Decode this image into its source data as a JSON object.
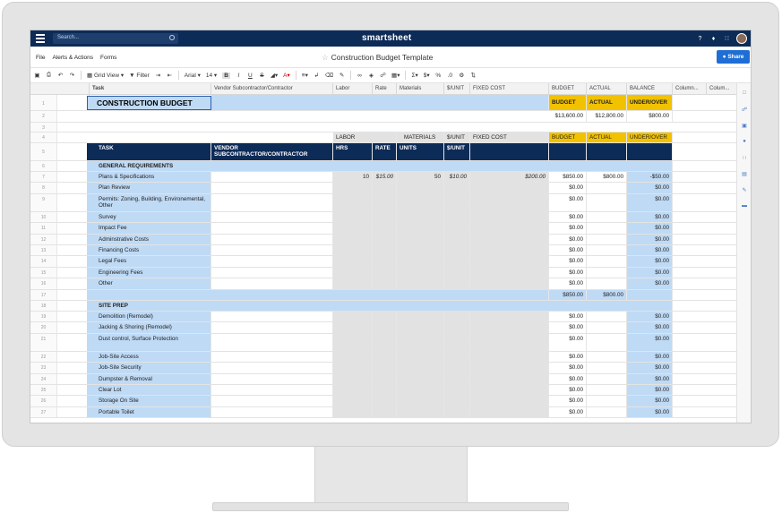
{
  "app": {
    "brand": "smartsheet",
    "search_placeholder": "Search...",
    "doc_title": "Construction Budget Template",
    "share_label": "Share",
    "menu": [
      "File",
      "Alerts & Actions",
      "Forms"
    ]
  },
  "toolbar": {
    "grid_view": "Grid View",
    "filter": "Filter",
    "font": "Arial",
    "font_size": "14",
    "bold": "B",
    "italic": "I",
    "underline": "U",
    "strike": "S",
    "sigma": "Σ",
    "currency": "$",
    "percent": "%",
    "decimals": ".0"
  },
  "columns": [
    "Task",
    "Vendor Subcontractor/Contractor",
    "Labor",
    "Rate",
    "Materials",
    "$/UNIT",
    "FIXED COST",
    "BUDGET",
    "ACTUAL",
    "BALANCE",
    "Column...",
    "Colum..."
  ],
  "sheet": {
    "title": "CONSTRUCTION BUDGET",
    "summary": {
      "budget_label": "BUDGET",
      "actual_label": "ACTUAL",
      "under_over_label": "UNDER/OVER",
      "budget": "$13,600.00",
      "actual": "$12,800.00",
      "under_over": "$800.00"
    },
    "subhead": {
      "labor": "LABOR",
      "materials": "MATERIALS",
      "unit": "$/UNIT",
      "fixed": "FIXED COST",
      "budget": "BUDGET",
      "actual": "ACTUAL",
      "under_over": "UNDER/OVER"
    },
    "header": {
      "task": "TASK",
      "vendor": "VENDOR SUBCONTRACTOR/CONTRACTOR",
      "hrs": "HRS",
      "rate": "RATE",
      "units": "UNITS",
      "unit": "$/UNIT"
    },
    "section1": "GENERAL REQUIREMENTS",
    "section1_rows": [
      {
        "rn": "7",
        "task": "Plans & Specifications",
        "hrs": "10",
        "rate": "$15.00",
        "units": "50",
        "unit": "$10.00",
        "fixed": "$200.00",
        "budget": "$850.00",
        "actual": "$800.00",
        "balance": "-$50.00"
      },
      {
        "rn": "8",
        "task": "Plan Review",
        "budget": "$0.00",
        "balance": "$0.00"
      },
      {
        "rn": "9",
        "task": "Permits: Zoning, Building, Environemental, Other",
        "budget": "$0.00",
        "balance": "$0.00"
      },
      {
        "rn": "10",
        "task": "Survey",
        "budget": "$0.00",
        "balance": "$0.00"
      },
      {
        "rn": "11",
        "task": "Impact Fee",
        "budget": "$0.00",
        "balance": "$0.00"
      },
      {
        "rn": "12",
        "task": "Adminstrative Costs",
        "budget": "$0.00",
        "balance": "$0.00"
      },
      {
        "rn": "13",
        "task": "Financing Costs",
        "budget": "$0.00",
        "balance": "$0.00"
      },
      {
        "rn": "14",
        "task": "Legal Fees",
        "budget": "$0.00",
        "balance": "$0.00"
      },
      {
        "rn": "15",
        "task": "Engineering Fees",
        "budget": "$0.00",
        "balance": "$0.00"
      },
      {
        "rn": "16",
        "task": "Other",
        "budget": "$0.00",
        "balance": "$0.00"
      }
    ],
    "section1_total": {
      "rn": "17",
      "budget": "$850.00",
      "actual": "$800.00"
    },
    "section2": "SITE PREP",
    "section2_rows": [
      {
        "rn": "19",
        "task": "Demolition (Remodel)",
        "budget": "$0.00",
        "balance": "$0.00"
      },
      {
        "rn": "20",
        "task": "Jacking & Shoring (Remodel)",
        "budget": "$0.00",
        "balance": "$0.00"
      },
      {
        "rn": "21",
        "task": "Dust control, Surface Protection",
        "budget": "$0.00",
        "balance": "$0.00"
      },
      {
        "rn": "22",
        "task": "Job-Site Access",
        "budget": "$0.00",
        "balance": "$0.00"
      },
      {
        "rn": "23",
        "task": "Job-Site Security",
        "budget": "$0.00",
        "balance": "$0.00"
      },
      {
        "rn": "24",
        "task": "Dumpster & Removal",
        "budget": "$0.00",
        "balance": "$0.00"
      },
      {
        "rn": "25",
        "task": "Clear Lot",
        "budget": "$0.00",
        "balance": "$0.00"
      },
      {
        "rn": "26",
        "task": "Storage On Site",
        "budget": "$0.00",
        "balance": "$0.00"
      },
      {
        "rn": "27",
        "task": "Portable Toilet",
        "budget": "$0.00",
        "balance": "$0.00"
      }
    ]
  }
}
